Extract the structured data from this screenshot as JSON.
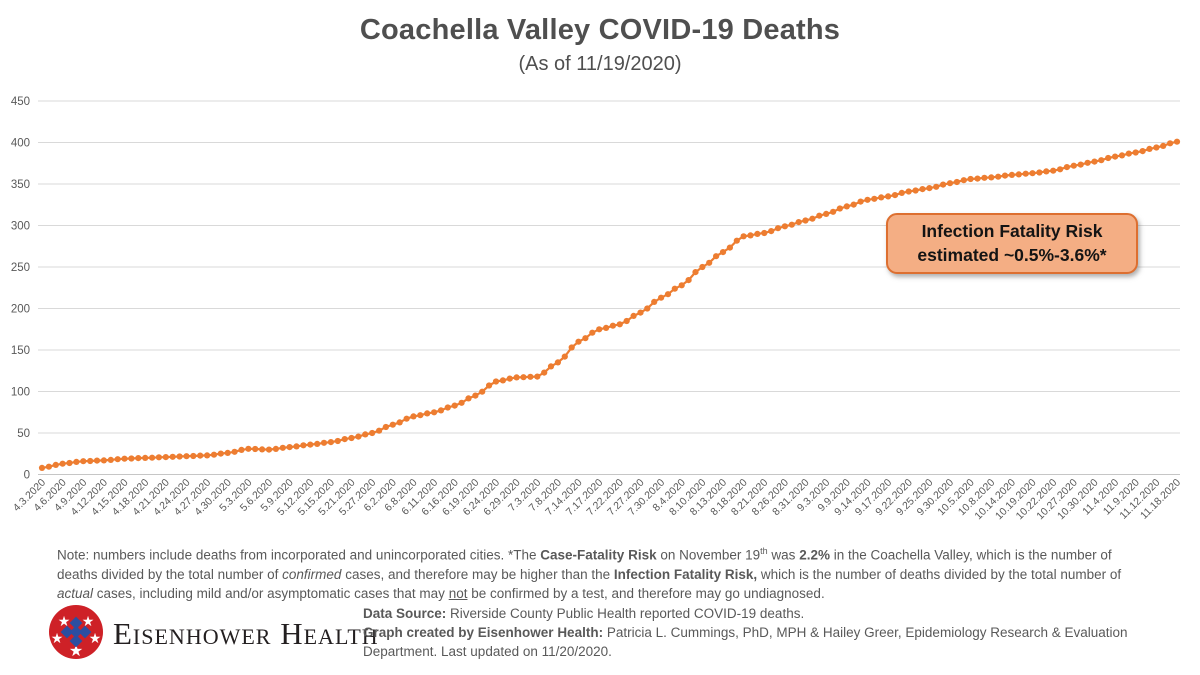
{
  "page": {
    "title": "Coachella Valley COVID-19 Deaths",
    "subtitle": "(As of 11/19/2020)"
  },
  "chart_data": {
    "type": "line",
    "title": "Coachella Valley COVID-19 Deaths",
    "subtitle": "(As of 11/19/2020)",
    "xlabel": "",
    "ylabel": "",
    "ylim": [
      0,
      450
    ],
    "ytick_step": 50,
    "grid": true,
    "legend": "none",
    "line_color": "#ED7D31",
    "marker": "circle",
    "categories": [
      "4.3.2020",
      "4.6.2020",
      "4.9.2020",
      "4.12.2020",
      "4.15.2020",
      "4.18.2020",
      "4.21.2020",
      "4.24.2020",
      "4.27.2020",
      "4.30.2020",
      "5.3.2020",
      "5.6.2020",
      "5.9.2020",
      "5.12.2020",
      "5.15.2020",
      "5.21.2020",
      "5.27.2020",
      "6.2.2020",
      "6.8.2020",
      "6.11.2020",
      "6.16.2020",
      "6.19.2020",
      "6.24.2020",
      "6.29.2020",
      "7.3.2020",
      "7.8.2020",
      "7.14.2020",
      "7.17.2020",
      "7.22.2020",
      "7.27.2020",
      "7.30.2020",
      "8.4.2020",
      "8.10.2020",
      "8.13.2020",
      "8.18.2020",
      "8.21.2020",
      "8.26.2020",
      "8.31.2020",
      "9.3.2020",
      "9.9.2020",
      "9.14.2020",
      "9.17.2020",
      "9.22.2020",
      "9.25.2020",
      "9.30.2020",
      "10.5.2020",
      "10.8.2020",
      "10.14.2020",
      "10.19.2020",
      "10.22.2020",
      "10.27.2020",
      "10.30.2020",
      "11.4.2020",
      "11.9.2020",
      "11.12.2020",
      "11.18.2020"
    ],
    "values": [
      8,
      13,
      16,
      17,
      19,
      20,
      21,
      22,
      23,
      26,
      31,
      30,
      33,
      36,
      39,
      44,
      50,
      60,
      70,
      75,
      83,
      95,
      112,
      117,
      118,
      135,
      160,
      175,
      181,
      195,
      213,
      228,
      250,
      268,
      287,
      291,
      299,
      306,
      314,
      323,
      331,
      335,
      341,
      345,
      351,
      356,
      358,
      361,
      363,
      366,
      372,
      377,
      383,
      388,
      394,
      401
    ]
  },
  "annotation": {
    "line1": "Infection Fatality Risk",
    "line2": "estimated ~0.5%-3.6%*",
    "fill": "#F4AE84",
    "border": "#DD6F30"
  },
  "note": {
    "segments": [
      {
        "t": "Note: numbers include deaths from incorporated and unincorporated cities. *The "
      },
      {
        "t": "Case-Fatality Risk",
        "b": true
      },
      {
        "t": " on November 19"
      },
      {
        "t": "th",
        "sup": true
      },
      {
        "t": " was "
      },
      {
        "t": "2.2%",
        "b": true
      },
      {
        "t": " in the Coachella Valley, which is the number of deaths divided by the total number of "
      },
      {
        "t": "confirmed",
        "i": true
      },
      {
        "t": " cases, and therefore may be higher than the "
      },
      {
        "t": "Infection Fatality Risk,",
        "b": true
      },
      {
        "t": " which is the number of deaths divided by the total number of "
      },
      {
        "t": "actual",
        "i": true
      },
      {
        "t": " cases, including mild and/or asymptomatic cases that may "
      },
      {
        "t": "not",
        "u": true
      },
      {
        "t": " be confirmed by a test, and therefore may go undiagnosed."
      }
    ]
  },
  "footer": {
    "logo_text": "Eisenhower Health",
    "logo_colors": {
      "circle": "#CE2127",
      "stars": "#FFFFFF",
      "emblem": "#2B4EA1"
    },
    "credit_line1": [
      {
        "t": "Data Source:",
        "b": true
      },
      {
        "t": " Riverside County Public Health reported COVID-19 deaths."
      }
    ],
    "credit_line2": [
      {
        "t": "Graph created by Eisenhower Health:",
        "b": true
      },
      {
        "t": " Patricia L. Cummings, PhD, MPH & Hailey Greer, Epidemiology Research & Evaluation Department. Last updated on 11/20/2020."
      }
    ]
  }
}
